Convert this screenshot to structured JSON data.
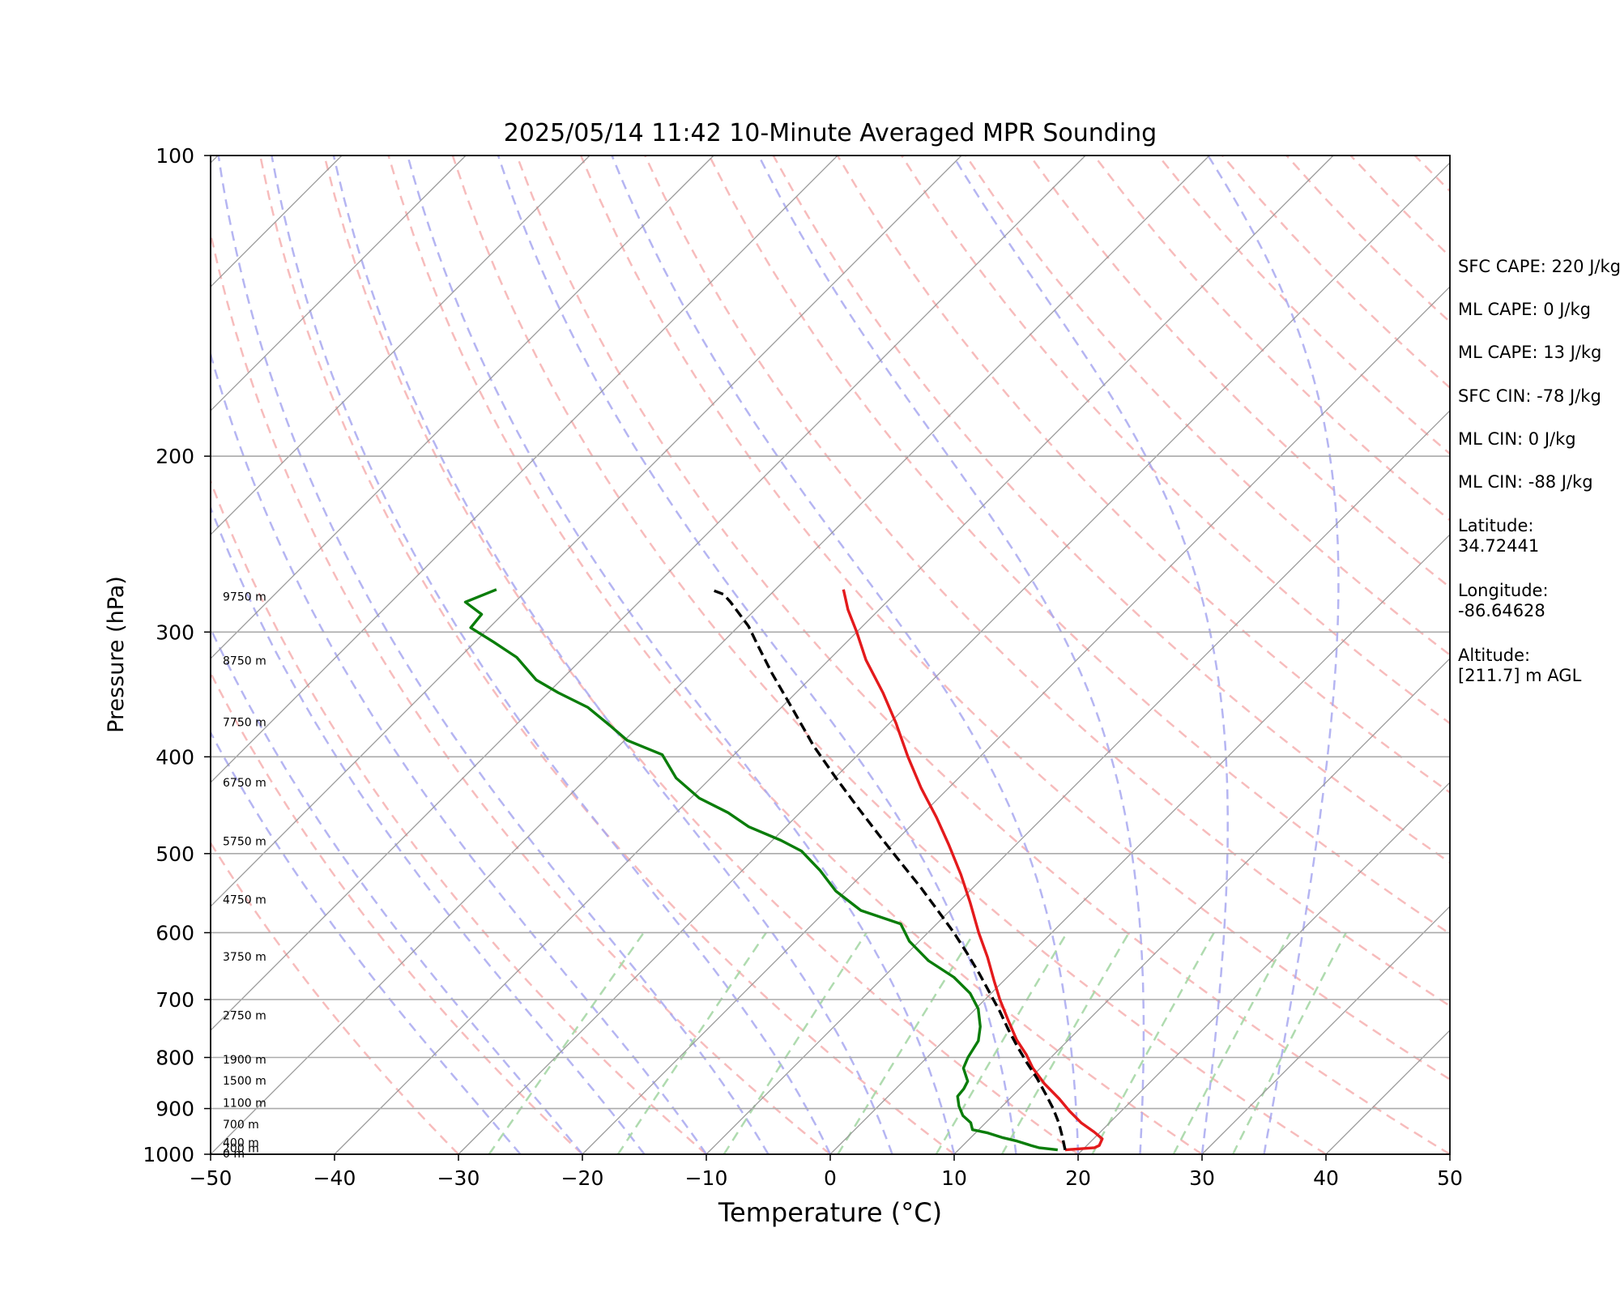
{
  "chart_data": {
    "type": "line",
    "subtype": "skew-t log-p",
    "title": "2025/05/14 11:42 10-Minute Averaged MPR Sounding",
    "xlabel": "Temperature (°C)",
    "ylabel": "Pressure (hPa)",
    "xlim": [
      -50,
      50
    ],
    "ylim": [
      1000,
      100
    ],
    "y_scale": "log",
    "x_ticks": [
      "−50",
      "−40",
      "−30",
      "−20",
      "−10",
      "0",
      "10",
      "20",
      "30",
      "40",
      "50"
    ],
    "y_ticks": [
      "1000",
      "900",
      "800",
      "700",
      "600",
      "500",
      "400",
      "300",
      "200",
      "100"
    ],
    "grid": true,
    "height_labels": [
      {
        "p": 1000,
        "text": "0 m"
      },
      {
        "p": 988,
        "text": "200 m"
      },
      {
        "p": 975,
        "text": "400 m"
      },
      {
        "p": 935,
        "text": "700 m"
      },
      {
        "p": 890,
        "text": "1100 m"
      },
      {
        "p": 845,
        "text": "1500 m"
      },
      {
        "p": 805,
        "text": "1900 m"
      },
      {
        "p": 727,
        "text": "2750 m"
      },
      {
        "p": 635,
        "text": "3750 m"
      },
      {
        "p": 557,
        "text": "4750 m"
      },
      {
        "p": 487,
        "text": "5750 m"
      },
      {
        "p": 425,
        "text": "6750 m"
      },
      {
        "p": 370,
        "text": "7750 m"
      },
      {
        "p": 321,
        "text": "8750 m"
      },
      {
        "p": 277,
        "text": "9750 m"
      }
    ],
    "series": [
      {
        "color": "#e41a1c",
        "points": [
          [
            18.6,
            990
          ],
          [
            20.8,
            985
          ],
          [
            21.0,
            980
          ],
          [
            20.7,
            965
          ],
          [
            19.5,
            950
          ],
          [
            17.7,
            930
          ],
          [
            15.8,
            905
          ],
          [
            14.0,
            880
          ],
          [
            11.6,
            850
          ],
          [
            9.4,
            820
          ],
          [
            7.8,
            795
          ],
          [
            5.8,
            768
          ],
          [
            3.6,
            735
          ],
          [
            1.2,
            700
          ],
          [
            -0.8,
            670
          ],
          [
            -3.2,
            635
          ],
          [
            -5.9,
            600
          ],
          [
            -9.0,
            560
          ],
          [
            -12.0,
            525
          ],
          [
            -15.4,
            490
          ],
          [
            -18.6,
            460
          ],
          [
            -22.2,
            430
          ],
          [
            -25.8,
            400
          ],
          [
            -29.5,
            370
          ],
          [
            -33.0,
            345
          ],
          [
            -37.0,
            320
          ],
          [
            -40.0,
            300
          ],
          [
            -42.5,
            285
          ],
          [
            -44.5,
            272
          ]
        ]
      },
      {
        "color": "#0a7d0a",
        "points": [
          [
            18.0,
            990
          ],
          [
            16.3,
            985
          ],
          [
            15.5,
            980
          ],
          [
            14.0,
            970
          ],
          [
            12.5,
            962
          ],
          [
            11.0,
            952
          ],
          [
            9.5,
            945
          ],
          [
            8.8,
            930
          ],
          [
            7.6,
            915
          ],
          [
            6.5,
            895
          ],
          [
            5.6,
            875
          ],
          [
            5.5,
            860
          ],
          [
            5.2,
            845
          ],
          [
            3.8,
            820
          ],
          [
            3.3,
            800
          ],
          [
            2.8,
            770
          ],
          [
            1.8,
            745
          ],
          [
            0.2,
            715
          ],
          [
            -1.7,
            690
          ],
          [
            -4.3,
            665
          ],
          [
            -7.7,
            640
          ],
          [
            -10.8,
            612
          ],
          [
            -12.9,
            588
          ],
          [
            -17.2,
            570
          ],
          [
            -20.8,
            545
          ],
          [
            -23.7,
            520
          ],
          [
            -26.8,
            497
          ],
          [
            -29.3,
            485
          ],
          [
            -33.0,
            470
          ],
          [
            -35.8,
            455
          ],
          [
            -39.3,
            440
          ],
          [
            -42.8,
            420
          ],
          [
            -45.8,
            398
          ],
          [
            -49.8,
            385
          ],
          [
            -52.4,
            372
          ],
          [
            -55.6,
            357
          ],
          [
            -59.2,
            345
          ],
          [
            -62.0,
            335
          ],
          [
            -65.4,
            318
          ],
          [
            -68.5,
            307
          ],
          [
            -71.5,
            297
          ],
          [
            -71.7,
            288
          ],
          [
            -74.0,
            280
          ],
          [
            -72.5,
            272
          ]
        ]
      },
      {
        "color": "#000000",
        "dashed": true,
        "points": [
          [
            18.6,
            990
          ],
          [
            17.3,
            960
          ],
          [
            15.9,
            930
          ],
          [
            14.3,
            900
          ],
          [
            12.5,
            870
          ],
          [
            10.6,
            840
          ],
          [
            8.5,
            810
          ],
          [
            6.4,
            780
          ],
          [
            4.3,
            750
          ],
          [
            2.2,
            720
          ],
          [
            -0.1,
            690
          ],
          [
            -2.5,
            660
          ],
          [
            -5.1,
            630
          ],
          [
            -7.9,
            600
          ],
          [
            -11.0,
            570
          ],
          [
            -14.3,
            540
          ],
          [
            -17.9,
            510
          ],
          [
            -21.7,
            480
          ],
          [
            -25.7,
            450
          ],
          [
            -29.9,
            420
          ],
          [
            -34.3,
            390
          ],
          [
            -38.7,
            360
          ],
          [
            -43.5,
            330
          ],
          [
            -46.8,
            310
          ],
          [
            -49.2,
            296
          ],
          [
            -52.6,
            280
          ],
          [
            -53.8,
            275
          ],
          [
            -55.2,
            272
          ]
        ]
      }
    ]
  },
  "side_panel": [
    "SFC CAPE: 220 J/kg",
    "ML CAPE: 0 J/kg",
    "ML CAPE: 13 J/kg",
    "SFC CIN: -78 J/kg",
    "ML CIN: 0 J/kg",
    "ML CIN: -88 J/kg",
    "Latitude:\n34.72441",
    "Longitude:\n-86.64628",
    "Altitude:\n[211.7] m AGL"
  ]
}
